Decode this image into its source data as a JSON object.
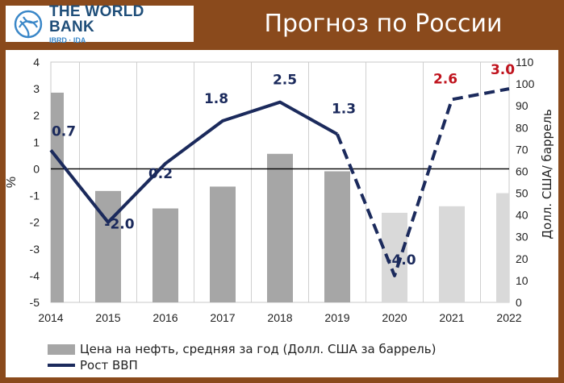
{
  "header": {
    "logo_name": "THE WORLD BANK",
    "logo_sub": "IBRD · IDA",
    "title": "Прогноз по России"
  },
  "colors": {
    "background": "#8a4a1c",
    "logo_blue": "#1f4e79",
    "bar_actual": "#a6a6a6",
    "bar_forecast": "#d9d9d9",
    "line": "#1b2a5c",
    "forecast_label": "#c0141e"
  },
  "chart_data": {
    "type": "bar+line",
    "categories": [
      "2014",
      "2015",
      "2016",
      "2017",
      "2018",
      "2019",
      "2020",
      "2021",
      "2022"
    ],
    "left_axis": {
      "label": "%",
      "range": [
        -5,
        4
      ],
      "ticks": [
        "4",
        "3",
        "2",
        "1",
        "0",
        "-1",
        "-2",
        "-3",
        "-4",
        "-5"
      ]
    },
    "right_axis": {
      "label": "Долл. США/ баррель",
      "range": [
        0,
        110
      ],
      "ticks": [
        "110",
        "100",
        "90",
        "80",
        "70",
        "60",
        "50",
        "40",
        "30",
        "20",
        "10",
        "0"
      ]
    },
    "bars": {
      "name": "Цена на нефть, средняя за год (Долл. США за баррель)",
      "axis": "right",
      "values": [
        96,
        51,
        43,
        53,
        68,
        60,
        41,
        44,
        50
      ],
      "forecast_from": "2020"
    },
    "line": {
      "name": "Рост ВВП",
      "axis": "left",
      "values": [
        0.7,
        -2.0,
        0.2,
        1.8,
        2.5,
        1.3,
        -4.0,
        2.6,
        3.0
      ],
      "labels": [
        "0.7",
        "-2.0",
        "0.2",
        "1.8",
        "2.5",
        "1.3",
        "-4.0",
        "2.6",
        "3.0"
      ],
      "dashed_from": "2019"
    },
    "grid": "vertical"
  },
  "legend": {
    "bars": "Цена на нефть, средняя за год (Долл. США за баррель)",
    "line": "Рост ВВП"
  }
}
